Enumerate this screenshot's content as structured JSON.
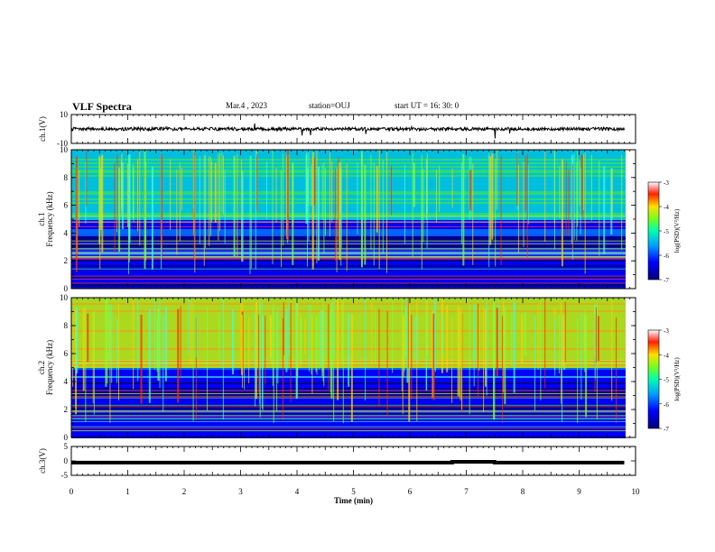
{
  "header": {
    "title": "VLF Spectra",
    "date": "Mar.4 , 2023",
    "station": "station=OUJ",
    "start_ut": "start UT =  16: 30: 0"
  },
  "colors": {
    "trace": "#000000",
    "colormap": [
      "#00007a",
      "#0000ff",
      "#0077ff",
      "#00e0e0",
      "#33ff66",
      "#c8ff00",
      "#ffd000",
      "#ff3000",
      "#c00000",
      "#ffffff"
    ]
  },
  "chart_data": [
    {
      "type": "line",
      "panel": "ch1-waveform",
      "ylabel": "ch.1(V)",
      "ylim": [
        -10,
        10
      ],
      "yticks": [
        "10",
        "-10"
      ],
      "xlim": [
        0,
        10
      ],
      "level": 0,
      "description_of_signal": "noisy trace near 0 V with spikes"
    },
    {
      "type": "heatmap",
      "panel": "ch1-spectrogram",
      "ylabel": "ch.1\nFrequency (kHz)",
      "ylabel_lines": [
        "ch.1",
        "Frequency (kHz)"
      ],
      "ylim": [
        0,
        10
      ],
      "yticks": [
        "0",
        "2",
        "4",
        "6",
        "8",
        "10"
      ],
      "xlim": [
        0,
        10
      ],
      "colorbar": {
        "label": "log(PSD)(V²/Hz)",
        "range": [
          -7,
          -3
        ],
        "ticks": [
          "-3",
          "-4",
          "-5",
          "-6",
          "-7"
        ]
      }
    },
    {
      "type": "heatmap",
      "panel": "ch2-spectrogram",
      "ylabel": "ch.2\nFrequency (kHz)",
      "ylabel_lines": [
        "ch.2",
        "Frequency (kHz)"
      ],
      "ylim": [
        0,
        10
      ],
      "yticks": [
        "0",
        "2",
        "4",
        "6",
        "8",
        "10"
      ],
      "xlim": [
        0,
        10
      ],
      "colorbar": {
        "label": "log(PSD)(V²/Hz)",
        "range": [
          -7,
          -3
        ],
        "ticks": [
          "-3",
          "-4",
          "-5",
          "-6",
          "-7"
        ]
      }
    },
    {
      "type": "line",
      "panel": "ch3-waveform",
      "ylabel": "ch.3(V)",
      "ylim": [
        -5,
        5
      ],
      "yticks": [
        "5",
        "0",
        "-5"
      ],
      "xlim": [
        0,
        10
      ],
      "xlabel": "Time (min)",
      "xticks": [
        "0",
        "1",
        "2",
        "3",
        "4",
        "5",
        "6",
        "7",
        "8",
        "9",
        "10"
      ],
      "x": [
        0,
        6.75,
        6.75,
        7.5,
        7.5,
        9.8
      ],
      "y": [
        -0.6,
        -0.6,
        -0.3,
        -0.3,
        -0.6,
        -0.6
      ]
    }
  ]
}
